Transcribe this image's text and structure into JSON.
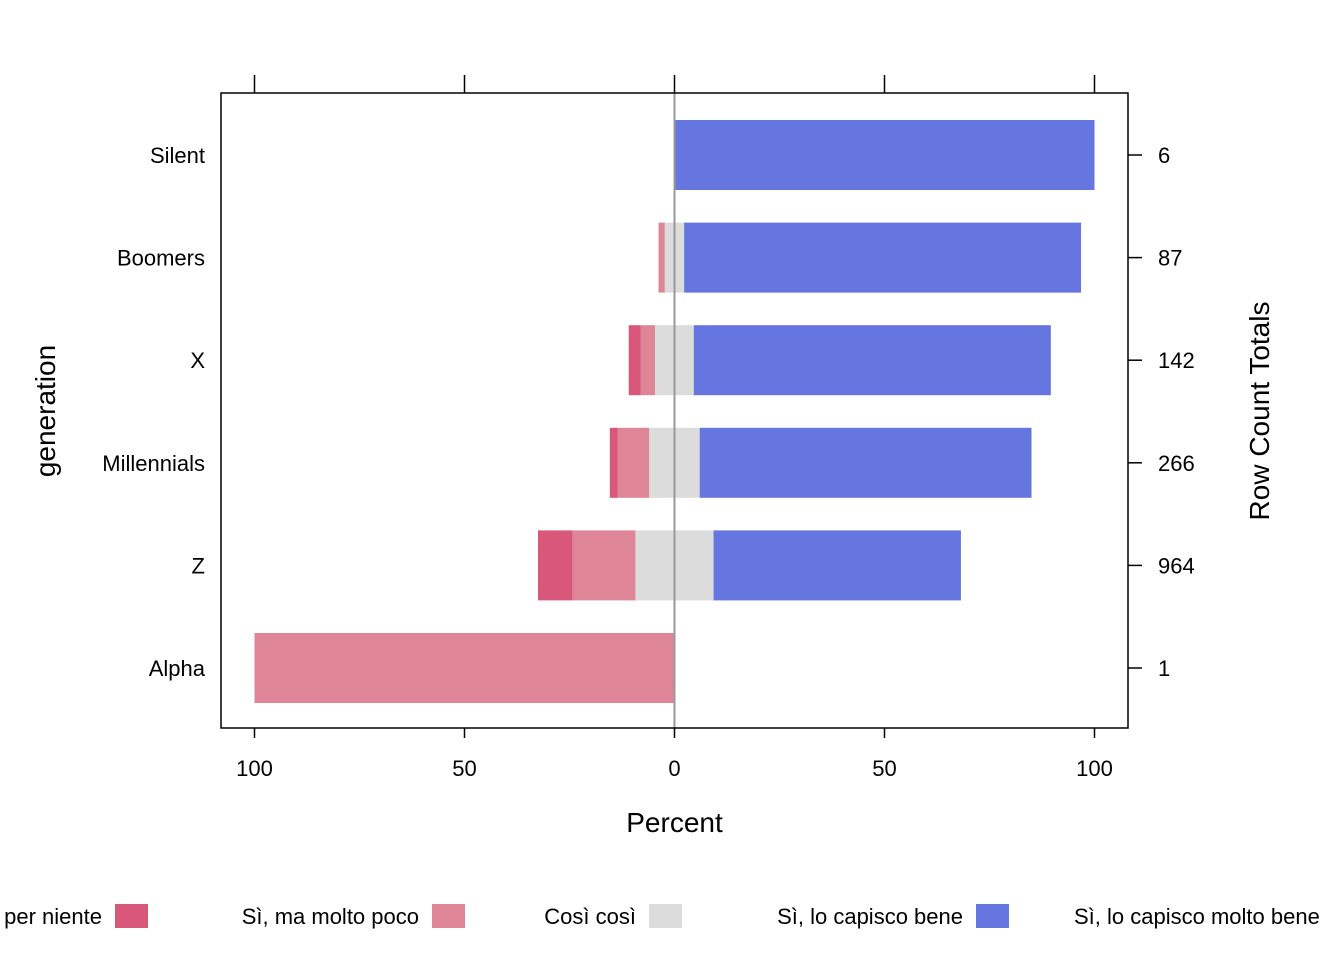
{
  "chart_data": {
    "type": "bar",
    "subtype": "diverging-stacked-horizontal",
    "xlabel": "Percent",
    "ylabel": "generation",
    "right_axis_label": "Row Count Totals",
    "xlim": [
      -108,
      108
    ],
    "xticks": [
      -100,
      -50,
      0,
      50,
      100
    ],
    "xtick_labels": [
      "100",
      "50",
      "0",
      "50",
      "100"
    ],
    "categories": [
      "Silent",
      "Boomers",
      "X",
      "Millennials",
      "Z",
      "Alpha"
    ],
    "row_totals": [
      "6",
      "87",
      "142",
      "266",
      "964",
      "1"
    ],
    "series": [
      {
        "name": "per niente",
        "side": "negative",
        "color": "#D9577A",
        "values": [
          0,
          0,
          2.8,
          1.9,
          8.2,
          0
        ]
      },
      {
        "name": "Sì, ma molto poco",
        "side": "negative",
        "color": "#DF8598",
        "values": [
          0,
          1.5,
          3.5,
          7.5,
          15.0,
          100
        ]
      },
      {
        "name": "Così così",
        "side": "neutral",
        "color": "#DCDCDC",
        "values": [
          0,
          4.6,
          9.2,
          12.0,
          18.6,
          0
        ]
      },
      {
        "name": "Sì, lo capisco bene",
        "side": "positive",
        "color": "#6576E0",
        "values": [
          100,
          94.5,
          85.0,
          79.0,
          58.9,
          0
        ]
      },
      {
        "name": "Sì, lo capisco molto bene",
        "side": "positive",
        "color": "#8F9CE0",
        "values": [
          0,
          0,
          0,
          0,
          0,
          0
        ]
      }
    ],
    "zero_line_color": "#999999",
    "grid": false,
    "legend_position": "bottom"
  }
}
